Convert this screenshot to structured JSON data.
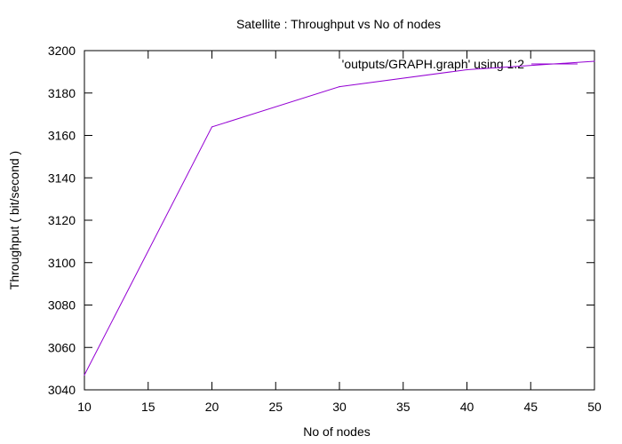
{
  "chart_data": {
    "type": "line",
    "title": "Satellite : Throughput vs No of nodes",
    "xlabel": "No of nodes",
    "ylabel": "Throughput ( bit/second )",
    "xlim": [
      10,
      50
    ],
    "ylim": [
      3040,
      3200
    ],
    "xticks": [
      "10",
      "15",
      "20",
      "25",
      "30",
      "35",
      "40",
      "45",
      "50"
    ],
    "yticks": [
      "3040",
      "3060",
      "3080",
      "3100",
      "3120",
      "3140",
      "3160",
      "3180",
      "3200"
    ],
    "grid": false,
    "legend_position": "top-right",
    "series": [
      {
        "name": "'outputs/GRAPH.graph' using 1:2",
        "color": "#9400d3",
        "x": [
          10,
          20,
          30,
          40,
          50
        ],
        "y": [
          3047,
          3164,
          3183,
          3191,
          3195
        ]
      }
    ]
  }
}
